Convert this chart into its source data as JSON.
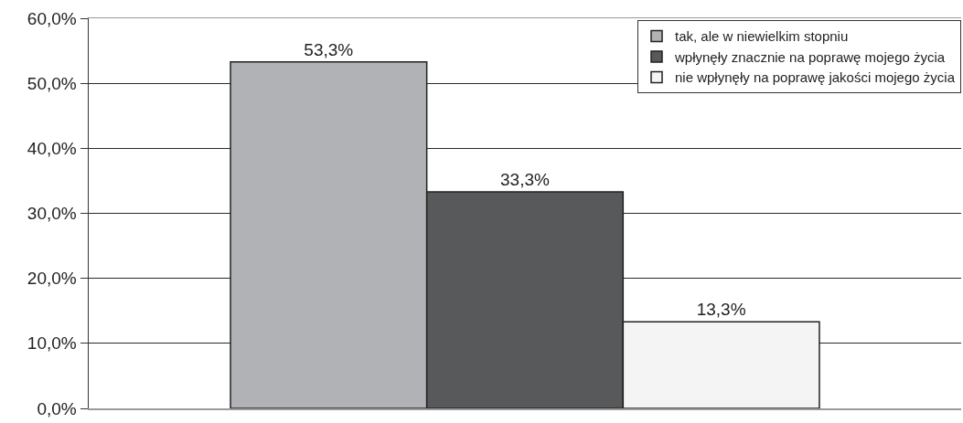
{
  "chart_data": {
    "type": "bar",
    "categories": [
      null
    ],
    "series": [
      {
        "name": "tak, ale w niewielkim stopniu",
        "color": "#b1b2b6",
        "values": [
          53.3
        ],
        "value_labels": [
          "53,3%"
        ]
      },
      {
        "name": "wpłynęły znacznie na poprawę mojego życia",
        "color": "#58595b",
        "values": [
          33.3
        ],
        "value_labels": [
          "33,3%"
        ]
      },
      {
        "name": "nie wpłynęły na poprawę jakości mojego życia",
        "color": "#f4f4f4",
        "values": [
          13.3
        ],
        "value_labels": [
          "13,3%"
        ]
      }
    ],
    "ylim": [
      0,
      60
    ],
    "yticks": [
      {
        "value": 0,
        "label": "0,0%"
      },
      {
        "value": 10,
        "label": "10,0%"
      },
      {
        "value": 20,
        "label": "20,0%"
      },
      {
        "value": 30,
        "label": "30,0%"
      },
      {
        "value": 40,
        "label": "40,0%"
      },
      {
        "value": 50,
        "label": "50,0%"
      },
      {
        "value": 60,
        "label": "60,0%"
      }
    ],
    "grid": "y",
    "legend": "top right"
  }
}
